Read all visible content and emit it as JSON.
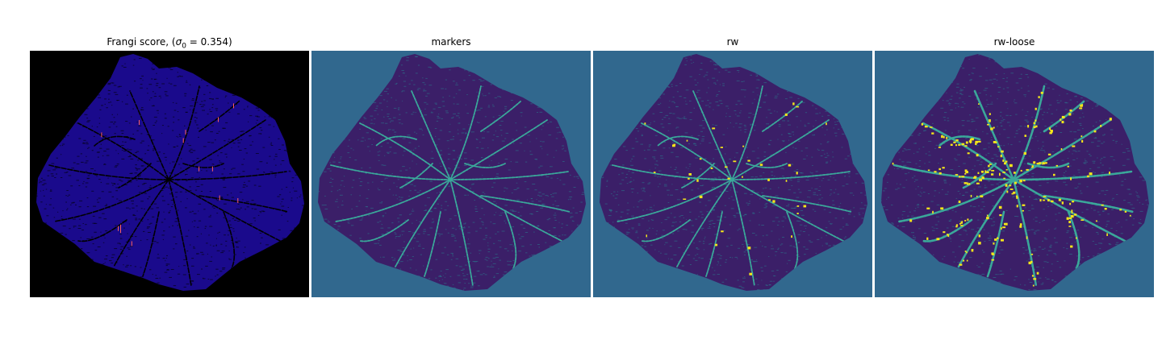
{
  "figure": {
    "panels": [
      {
        "id": "frangi",
        "title_prefix": "Frangi score, (",
        "title_symbol": "σ",
        "title_subscript": "0",
        "title_suffix": " = 0.354)",
        "background": "#000000",
        "leaf_fill": "#1a0a8c",
        "vessel_color": "#000000",
        "highlight_color": "#ff6060"
      },
      {
        "id": "markers",
        "title": "markers",
        "background": "#31688e",
        "leaf_fill": "#3b1f68",
        "vessel_color": "#3aa89a",
        "highlight_color": "#3aa89a"
      },
      {
        "id": "rw",
        "title": "rw",
        "background": "#31688e",
        "leaf_fill": "#3b1f68",
        "vessel_color": "#3aa89a",
        "highlight_color": "#f5e61a"
      },
      {
        "id": "rw-loose",
        "title": "rw-loose",
        "background": "#31688e",
        "leaf_fill": "#3b1f68",
        "vessel_color": "#3aa89a",
        "highlight_color": "#f5e61a"
      }
    ]
  }
}
